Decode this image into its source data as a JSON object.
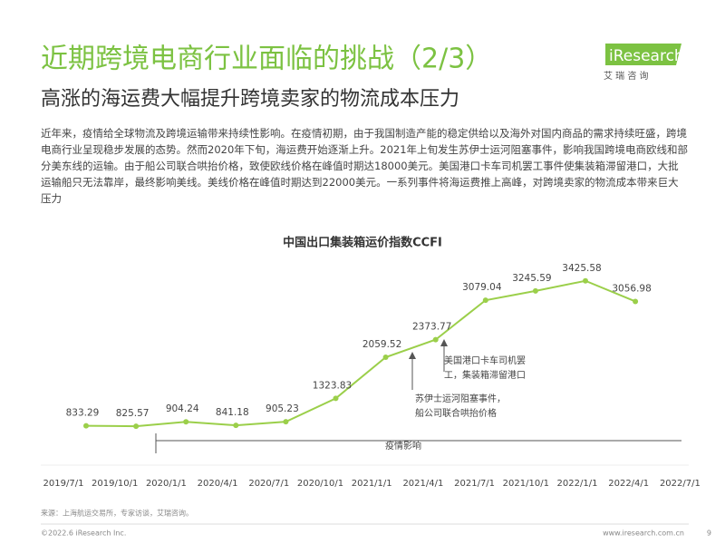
{
  "header": {
    "title": "近期跨境电商行业面临的挑战（2/3）",
    "subtitle": "高涨的海运费大幅提升跨境卖家的物流成本压力"
  },
  "logo": {
    "name": "iResearch",
    "tagline": "艾 瑞 咨 询"
  },
  "paragraph": "近年来，疫情给全球物流及跨境运输带来持续性影响。在疫情初期，由于我国制造产能的稳定供给以及海外对国内商品的需求持续旺盛，跨境电商行业呈现稳步发展的态势。然而2020年下旬，海运费开始逐渐上升。2021年上旬发生苏伊士运河阻塞事件，影响我国跨境电商欧线和部分美东线的运输。由于船公司联合哄抬价格，致使欧线价格在峰值时期达18000美元。美国港口卡车司机罢工事件使集装箱滞留港口，大批运输船只无法靠岸，最终影响美线。美线价格在峰值时期达到22000美元。一系列事件将海运费推上高峰，对跨境卖家的物流成本带来巨大压力",
  "chart_data": {
    "type": "line",
    "title": "中国出口集装箱运价指数CCFI",
    "categories": [
      "2019/7/1",
      "2019/10/1",
      "2020/1/1",
      "2020/4/1",
      "2020/7/1",
      "2020/10/1",
      "2021/1/1",
      "2021/4/1",
      "2021/7/1",
      "2021/10/1",
      "2022/1/1",
      "2022/4/1",
      "2022/7/1"
    ],
    "values": [
      833.29,
      825.57,
      904.24,
      841.18,
      905.23,
      1323.83,
      2059.52,
      2373.77,
      3079.04,
      3245.59,
      3425.58,
      3056.98,
      null
    ],
    "color": "#9bcf4a",
    "ylim": [
      0,
      3600
    ],
    "annotations": [
      [
        "美国港口卡车司机罢",
        "工，集装箱滞留港口"
      ],
      [
        "苏伊士运河阻塞事件，",
        "船公司联合哄抬价格"
      ],
      [
        "疫情影响"
      ]
    ]
  },
  "source": "来源：上海航运交易所，专家访谈，艾瑞咨询。",
  "footer": {
    "copyright": "©2022.6 iResearch Inc.",
    "website": "www.iresearch.com.cn",
    "page": "9"
  }
}
